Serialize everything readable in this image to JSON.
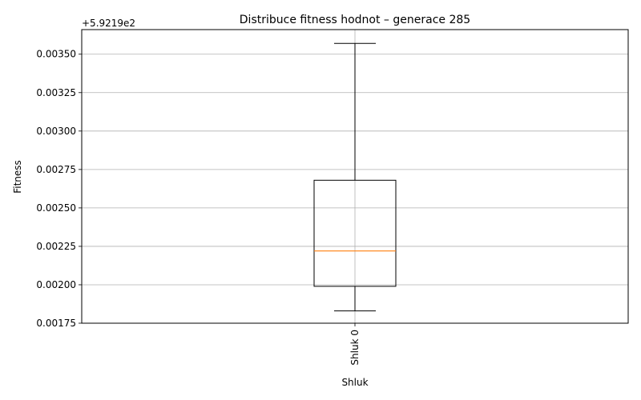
{
  "chart_data": {
    "type": "box",
    "title": "Distribuce fitness hodnot – generace 285",
    "xlabel": "Shluk",
    "ylabel": "Fitness",
    "offset_label": "+5.9219e2",
    "categories": [
      "Shluk 0"
    ],
    "boxes": [
      {
        "name": "Shluk 0",
        "whisker_low": 0.00183,
        "q1": 0.00199,
        "median": 0.00222,
        "q3": 0.00268,
        "whisker_high": 0.00357
      }
    ],
    "ylim": [
      0.00175,
      0.00366
    ],
    "yticks": [
      0.00175,
      0.002,
      0.00225,
      0.0025,
      0.00275,
      0.003,
      0.00325,
      0.0035
    ],
    "ytick_labels": [
      "0.00175",
      "0.00200",
      "0.00225",
      "0.00250",
      "0.00275",
      "0.00300",
      "0.00325",
      "0.00350"
    ],
    "grid": true,
    "colors": {
      "box": "#000000",
      "median": "#ff7f0e",
      "grid": "#b0b0b0"
    }
  }
}
